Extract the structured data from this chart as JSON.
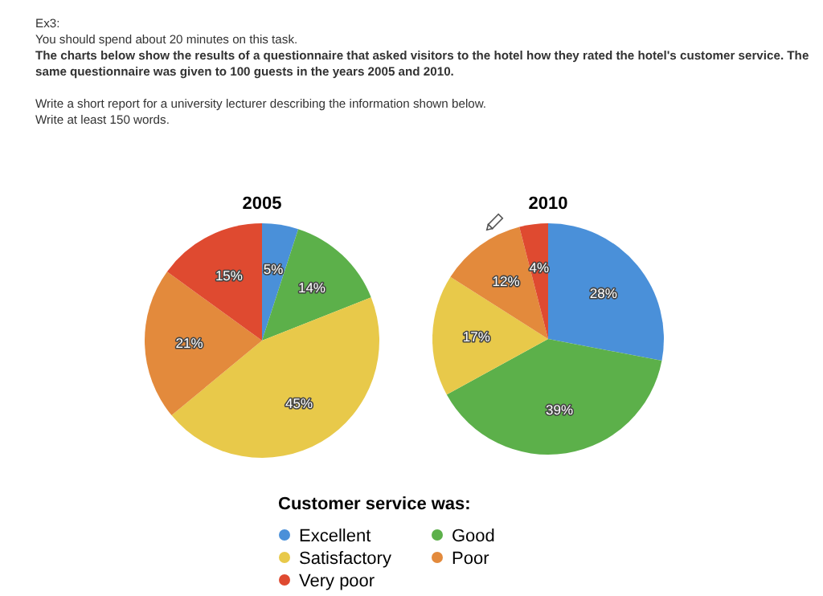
{
  "chart_data": [
    {
      "type": "other",
      "annotations": [
        "Ex3:",
        "You should spend about 20 minutes on this task.",
        "The charts below show the results of a questionnaire that asked visitors to the hotel how they rated the hotel's customer service. The same questionnaire was given to 100 guests in the years 2005 and 2010.",
        "Write a short report for a university lecturer describing the information shown below.",
        "Write at least 150 words."
      ]
    },
    {
      "type": "pie",
      "title": "2005",
      "categories": [
        null,
        null,
        null,
        null,
        null
      ],
      "values": [
        5,
        14,
        45,
        21,
        15
      ],
      "value_labels": [
        "5%",
        "14%",
        "45%",
        "21%",
        "15%"
      ],
      "colors": [
        "#4a90d9",
        "#5cb04a",
        "#e8c94a",
        "#e38a3c",
        "#df4a30"
      ]
    },
    {
      "type": "pie",
      "title": "2010",
      "categories": [
        "Excellent",
        "Good",
        "Satisfactory",
        "Poor",
        "Very poor"
      ],
      "values": [
        28,
        39,
        17,
        12,
        4
      ],
      "value_labels": [
        "28%",
        "39%",
        "17%",
        "12%",
        "4%"
      ],
      "colors": [
        "#4a90d9",
        "#5cb04a",
        "#e8c94a",
        "#e38a3c",
        "#df4a30"
      ],
      "legend": "bottom",
      "legend_title": "Customer service was:"
    }
  ]
}
